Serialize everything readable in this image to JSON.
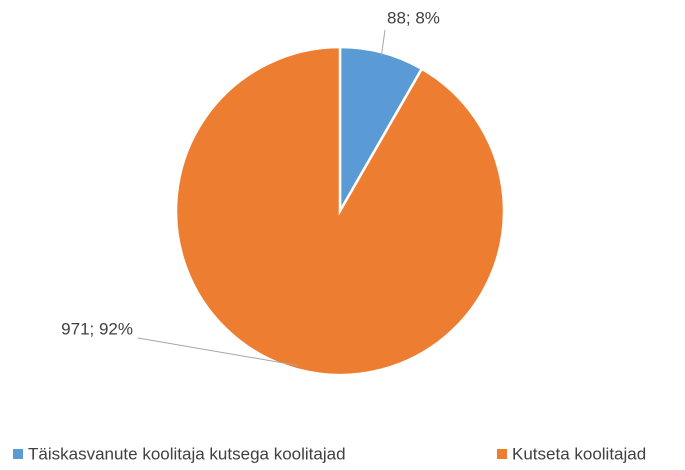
{
  "chart_data": {
    "type": "pie",
    "categories": [
      "Täiskasvanute koolitaja kutsega koolitajad",
      "Kutseta koolitajad"
    ],
    "values": [
      88,
      971
    ],
    "value_labels": [
      "88; 8%",
      "971; 92%"
    ],
    "colors": [
      "#5b9bd5",
      "#ed7d31"
    ],
    "legend": "bottom"
  }
}
